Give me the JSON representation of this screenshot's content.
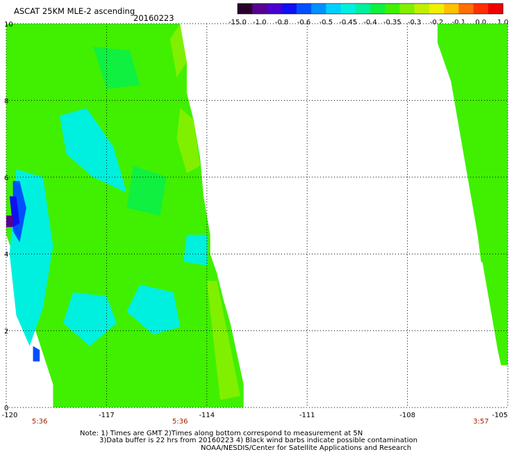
{
  "chart_data": {
    "type": "heatmap",
    "title": "ASCAT 25KM MLE-2 ascending",
    "date": "20160223",
    "colorbar": {
      "labels": [
        "-15.0",
        "-1.0",
        "-0.8",
        "-0.6",
        "-0.5",
        "-0.45",
        "-0.4",
        "-0.35",
        "-0.3",
        "-0.2",
        "-0.1",
        "0.0",
        "1.0"
      ],
      "colors": [
        "#2a002a",
        "#5a0090",
        "#4a00d0",
        "#1010f0",
        "#0050ff",
        "#0090ff",
        "#00d0ff",
        "#00f0e0",
        "#00f0a0",
        "#10f040",
        "#40f000",
        "#80f000",
        "#c0f000",
        "#f0f000",
        "#ffc000",
        "#ff7000",
        "#ff3000",
        "#f00000"
      ]
    },
    "x_axis": {
      "ticks": [
        -120,
        -117,
        -114,
        -111,
        -108,
        -105
      ],
      "tick_labels": [
        "-120",
        "-117",
        "-114",
        "-111",
        "-108",
        "-105"
      ],
      "xlim": [
        -120,
        -105
      ]
    },
    "y_axis": {
      "ticks": [
        0,
        2,
        4,
        6,
        8,
        10
      ],
      "tick_labels": [
        "0",
        "2",
        "4",
        "6",
        "8",
        "10"
      ],
      "ylim": [
        0,
        10
      ]
    },
    "grid": true,
    "time_labels": [
      {
        "x": -119.0,
        "text": "5:36"
      },
      {
        "x": -114.8,
        "text": "5:36"
      },
      {
        "x": -105.8,
        "text": "3:57"
      }
    ],
    "swaths": [
      {
        "name": "swath-west",
        "edges": [
          {
            "y": 10.0,
            "lon_w": -120.0,
            "lon_e": -114.8
          },
          {
            "y": 9.3,
            "lon_w": -120.0,
            "lon_e": -114.8
          },
          {
            "y": 9.0,
            "lon_w": -120.0,
            "lon_e": -114.6
          },
          {
            "y": 8.2,
            "lon_w": -120.0,
            "lon_e": -114.6
          },
          {
            "y": 7.5,
            "lon_w": -120.0,
            "lon_e": -114.4
          },
          {
            "y": 6.5,
            "lon_w": -120.0,
            "lon_e": -114.2
          },
          {
            "y": 5.5,
            "lon_w": -120.0,
            "lon_e": -114.1
          },
          {
            "y": 4.5,
            "lon_w": -120.0,
            "lon_e": -113.9
          },
          {
            "y": 4.0,
            "lon_w": -119.8,
            "lon_e": -113.9
          },
          {
            "y": 3.5,
            "lon_w": -119.6,
            "lon_e": -113.7
          },
          {
            "y": 2.8,
            "lon_w": -119.4,
            "lon_e": -113.5
          },
          {
            "y": 2.2,
            "lon_w": -119.2,
            "lon_e": -113.3
          },
          {
            "y": 1.4,
            "lon_w": -118.9,
            "lon_e": -113.1
          },
          {
            "y": 0.6,
            "lon_w": -118.6,
            "lon_e": -112.9
          },
          {
            "y": 0.0,
            "lon_w": -118.6,
            "lon_e": -112.9
          }
        ],
        "regions": [
          {
            "level": "-0.45",
            "points": [
              [
                -118.4,
                7.6
              ],
              [
                -117.6,
                7.8
              ],
              [
                -116.8,
                6.8
              ],
              [
                -116.4,
                5.6
              ],
              [
                -117.4,
                6.0
              ],
              [
                -118.2,
                6.6
              ]
            ]
          },
          {
            "level": "-0.45",
            "points": [
              [
                -119.7,
                6.2
              ],
              [
                -118.9,
                6.0
              ],
              [
                -118.6,
                4.2
              ],
              [
                -118.9,
                2.6
              ],
              [
                -119.3,
                1.6
              ],
              [
                -119.7,
                2.4
              ],
              [
                -119.9,
                4.0
              ]
            ]
          },
          {
            "level": "-0.45",
            "points": [
              [
                -118.0,
                3.0
              ],
              [
                -117.0,
                2.9
              ],
              [
                -116.7,
                2.2
              ],
              [
                -117.5,
                1.6
              ],
              [
                -118.3,
                2.2
              ]
            ]
          },
          {
            "level": "-0.45",
            "points": [
              [
                -116.0,
                3.2
              ],
              [
                -115.0,
                3.0
              ],
              [
                -114.8,
                2.1
              ],
              [
                -115.6,
                1.9
              ],
              [
                -116.4,
                2.5
              ]
            ]
          },
          {
            "level": "-0.45",
            "points": [
              [
                -114.6,
                4.5
              ],
              [
                -114.0,
                4.5
              ],
              [
                -114.0,
                3.7
              ],
              [
                -114.7,
                3.8
              ]
            ]
          },
          {
            "level": "-0.4",
            "points": [
              [
                -117.4,
                9.4
              ],
              [
                -116.3,
                9.3
              ],
              [
                -116.0,
                8.4
              ],
              [
                -117.0,
                8.3
              ]
            ]
          },
          {
            "level": "-0.4",
            "points": [
              [
                -116.2,
                6.3
              ],
              [
                -115.2,
                6.0
              ],
              [
                -115.4,
                5.0
              ],
              [
                -116.4,
                5.2
              ]
            ]
          },
          {
            "level": "-0.3",
            "points": [
              [
                -114.8,
                7.8
              ],
              [
                -114.4,
                7.5
              ],
              [
                -114.2,
                6.3
              ],
              [
                -114.6,
                6.1
              ],
              [
                -114.9,
                7.0
              ]
            ]
          },
          {
            "level": "-0.3",
            "points": [
              [
                -114.0,
                3.3
              ],
              [
                -113.7,
                3.3
              ],
              [
                -113.0,
                0.3
              ],
              [
                -113.6,
                0.2
              ]
            ]
          },
          {
            "level": "-0.3",
            "points": [
              [
                -114.8,
                10.0
              ],
              [
                -114.6,
                9.0
              ],
              [
                -114.9,
                8.6
              ],
              [
                -115.1,
                9.6
              ]
            ]
          },
          {
            "level": "-0.6",
            "points": [
              [
                -119.8,
                5.9
              ],
              [
                -119.6,
                5.9
              ],
              [
                -119.4,
                5.2
              ],
              [
                -119.6,
                4.3
              ],
              [
                -119.8,
                4.6
              ]
            ]
          },
          {
            "level": "-0.6",
            "points": [
              [
                -119.2,
                1.6
              ],
              [
                -119.0,
                1.5
              ],
              [
                -119.0,
                1.2
              ],
              [
                -119.2,
                1.2
              ]
            ]
          },
          {
            "level": "-0.8",
            "points": [
              [
                -119.9,
                5.5
              ],
              [
                -119.7,
                5.5
              ],
              [
                -119.6,
                4.8
              ],
              [
                -119.8,
                4.7
              ]
            ]
          },
          {
            "level": "-1.0",
            "points": [
              [
                -120.0,
                5.0
              ],
              [
                -119.8,
                5.0
              ],
              [
                -119.8,
                4.7
              ],
              [
                -120.0,
                4.7
              ]
            ]
          }
        ]
      },
      {
        "name": "swath-east",
        "edges": [
          {
            "y": 10.0,
            "lon_w": -107.1,
            "lon_e": -105.0
          },
          {
            "y": 9.5,
            "lon_w": -107.1,
            "lon_e": -105.0
          },
          {
            "y": 8.5,
            "lon_w": -106.7,
            "lon_e": -105.0
          },
          {
            "y": 7.5,
            "lon_w": -106.5,
            "lon_e": -105.0
          },
          {
            "y": 6.5,
            "lon_w": -106.3,
            "lon_e": -105.0
          },
          {
            "y": 5.5,
            "lon_w": -106.1,
            "lon_e": -105.0
          },
          {
            "y": 4.5,
            "lon_w": -105.9,
            "lon_e": -105.0
          },
          {
            "y": 3.5,
            "lon_w": -105.7,
            "lon_e": -105.0
          },
          {
            "y": 2.5,
            "lon_w": -105.5,
            "lon_e": -105.0
          },
          {
            "y": 1.5,
            "lon_w": -105.3,
            "lon_e": -105.0
          },
          {
            "y": 1.1,
            "lon_w": -105.2,
            "lon_e": -105.0
          }
        ],
        "regions": [
          {
            "level": "-0.35",
            "points": [
              [
                -106.0,
                5.2
              ],
              [
                -105.6,
                5.0
              ],
              [
                -105.4,
                3.6
              ],
              [
                -105.8,
                3.8
              ]
            ]
          }
        ]
      }
    ],
    "notes": [
      "Note: 1) Times are GMT 2)Times along bottom correspond to measurement at 5N",
      "3)Data buffer is 22 hrs from 20160223 4) Black wind barbs indicate possible contamination",
      "NOAA/NESDIS/Center for Satellite Applications and Research"
    ]
  }
}
